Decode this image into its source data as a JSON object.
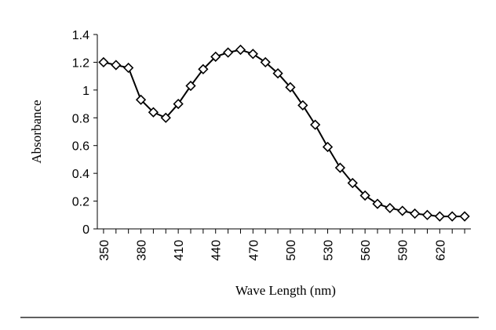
{
  "chart_data": {
    "type": "line",
    "title": "",
    "xlabel": "Wave Length (nm)",
    "ylabel": "Absorbance",
    "xlim": [
      345,
      645
    ],
    "ylim": [
      0,
      1.4
    ],
    "xticks": [
      350,
      380,
      410,
      440,
      470,
      500,
      530,
      560,
      590,
      620
    ],
    "yticks": [
      "0",
      "0.2",
      "0.4",
      "0.6",
      "0.8",
      "1",
      "1.2",
      "1.4"
    ],
    "grid": false,
    "legend": "none",
    "marker": "diamond-open",
    "line_color": "#000000",
    "series": [
      {
        "x": [
          350,
          360,
          370,
          380,
          390,
          400,
          410,
          420,
          430,
          440,
          450,
          460,
          470,
          480,
          490,
          500,
          510,
          520,
          530,
          540,
          550,
          560,
          570,
          580,
          590,
          600,
          610,
          620,
          630,
          640
        ],
        "y": [
          1.2,
          1.18,
          1.16,
          0.93,
          0.84,
          0.8,
          0.9,
          1.03,
          1.15,
          1.24,
          1.27,
          1.29,
          1.26,
          1.2,
          1.12,
          1.02,
          0.89,
          0.75,
          0.59,
          0.44,
          0.33,
          0.24,
          0.18,
          0.15,
          0.13,
          0.11,
          0.1,
          0.09,
          0.09,
          0.09
        ]
      }
    ]
  }
}
